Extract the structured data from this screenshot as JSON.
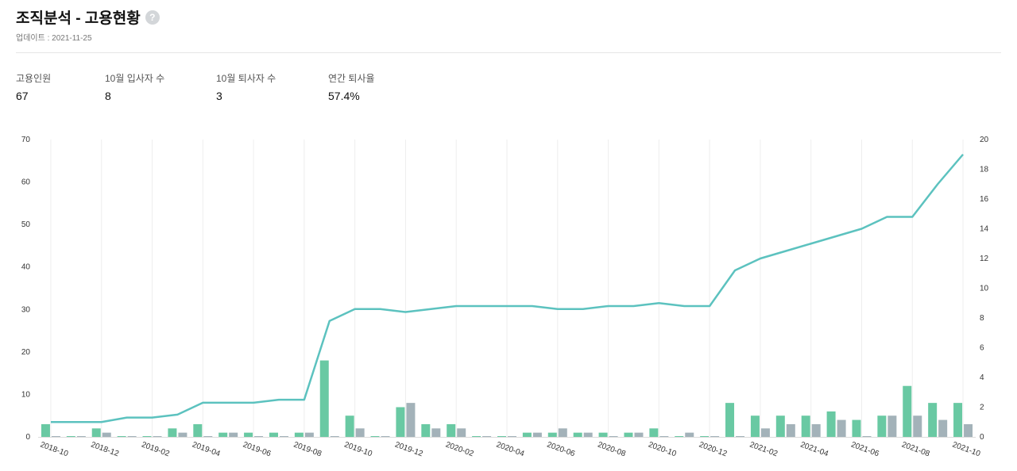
{
  "header": {
    "title": "조직분석 - 고용현황",
    "help_icon": "?",
    "updated": "업데이트 : 2021-11-25"
  },
  "stats": [
    {
      "label": "고용인원",
      "value": "67"
    },
    {
      "label": "10월 입사자 수",
      "value": "8"
    },
    {
      "label": "10월 퇴사자 수",
      "value": "3"
    },
    {
      "label": "연간 퇴사율",
      "value": "57.4%"
    }
  ],
  "colors": {
    "hires": "#69c9a3",
    "leaves": "#a3b2b9",
    "line": "#5cc2bf",
    "grid": "#eeeeee"
  },
  "chart_data": {
    "type": "bar",
    "months": [
      "2018-10",
      "2018-11",
      "2018-12",
      "2019-01",
      "2019-02",
      "2019-03",
      "2019-04",
      "2019-05",
      "2019-06",
      "2019-07",
      "2019-08",
      "2019-09",
      "2019-10",
      "2019-11",
      "2019-12",
      "2020-01",
      "2020-02",
      "2020-03",
      "2020-04",
      "2020-05",
      "2020-06",
      "2020-07",
      "2020-08",
      "2020-09",
      "2020-10",
      "2020-11",
      "2020-12",
      "2021-01",
      "2021-02",
      "2021-03",
      "2021-04",
      "2021-05",
      "2021-06",
      "2021-07",
      "2021-08",
      "2021-09",
      "2021-10"
    ],
    "x_tick_labels": [
      "2018-10",
      "2018-12",
      "2019-02",
      "2019-04",
      "2019-06",
      "2019-08",
      "2019-10",
      "2019-12",
      "2020-02",
      "2020-04",
      "2020-06",
      "2020-08",
      "2020-10",
      "2020-12",
      "2021-02",
      "2021-04",
      "2021-06",
      "2021-08",
      "2021-10"
    ],
    "series": [
      {
        "axis": "left",
        "type": "bar",
        "color": "hires",
        "values": [
          3,
          0,
          2,
          0,
          0,
          2,
          3,
          1,
          1,
          1,
          1,
          18,
          5,
          0,
          7,
          3,
          3,
          0,
          0,
          1,
          1,
          1,
          1,
          1,
          2,
          0,
          0,
          8,
          5,
          5,
          5,
          6,
          4,
          5,
          12,
          8,
          8
        ]
      },
      {
        "axis": "left",
        "type": "bar",
        "color": "leaves",
        "values": [
          0,
          0,
          1,
          0,
          0,
          1,
          0,
          1,
          0,
          0,
          1,
          0,
          2,
          0,
          8,
          2,
          2,
          0,
          0,
          1,
          2,
          1,
          0,
          1,
          0,
          1,
          0,
          0,
          2,
          3,
          3,
          4,
          0,
          5,
          5,
          4,
          3
        ]
      },
      {
        "axis": "right",
        "type": "line",
        "color": "line",
        "values": [
          1,
          1,
          1,
          1.3,
          1.3,
          1.5,
          2.3,
          2.3,
          2.3,
          2.5,
          2.5,
          7.8,
          8.6,
          8.6,
          8.4,
          8.6,
          8.8,
          8.8,
          8.8,
          8.8,
          8.6,
          8.6,
          8.8,
          8.8,
          9.0,
          8.8,
          8.8,
          11.2,
          12.0,
          12.5,
          13.0,
          13.5,
          14.0,
          14.8,
          14.8,
          17.0,
          19.0
        ]
      }
    ],
    "y_left": {
      "ticks": [
        0,
        10,
        20,
        30,
        40,
        50,
        60,
        70
      ],
      "lim": [
        0,
        70
      ]
    },
    "y_right": {
      "ticks": [
        0,
        2,
        4,
        6,
        8,
        10,
        12,
        14,
        16,
        18,
        20
      ],
      "lim": [
        0,
        20
      ]
    },
    "grid": true
  }
}
